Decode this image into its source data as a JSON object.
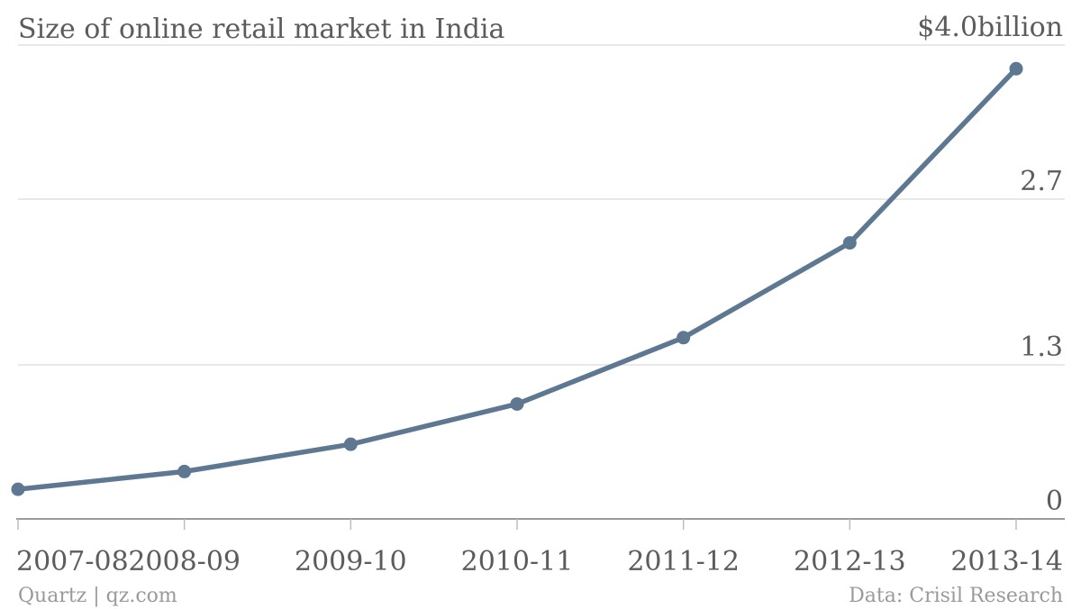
{
  "chart_data": {
    "type": "line",
    "title": "Size of online retail market in India",
    "x": [
      "2007-08",
      "2008-09",
      "2009-10",
      "2010-11",
      "2011-12",
      "2012-13",
      "2013-14"
    ],
    "series": [
      {
        "values": [
          0.25,
          0.4,
          0.63,
          0.97,
          1.53,
          2.33,
          3.8
        ],
        "color": "#5d7890"
      }
    ],
    "ylim": [
      0,
      4.0
    ],
    "yticks": [
      {
        "value": 0,
        "label": "0"
      },
      {
        "value": 1.3,
        "label": "1.3"
      },
      {
        "value": 2.7,
        "label": "2.7"
      },
      {
        "value": 4.0,
        "label": "$4.0billion"
      }
    ],
    "grid": true,
    "gridColor": "#e2e2e2",
    "axisColor": "#7a7a7a"
  },
  "footer": {
    "source_left": "Quartz | qz.com",
    "source_right": "Data: Crisil Research"
  }
}
